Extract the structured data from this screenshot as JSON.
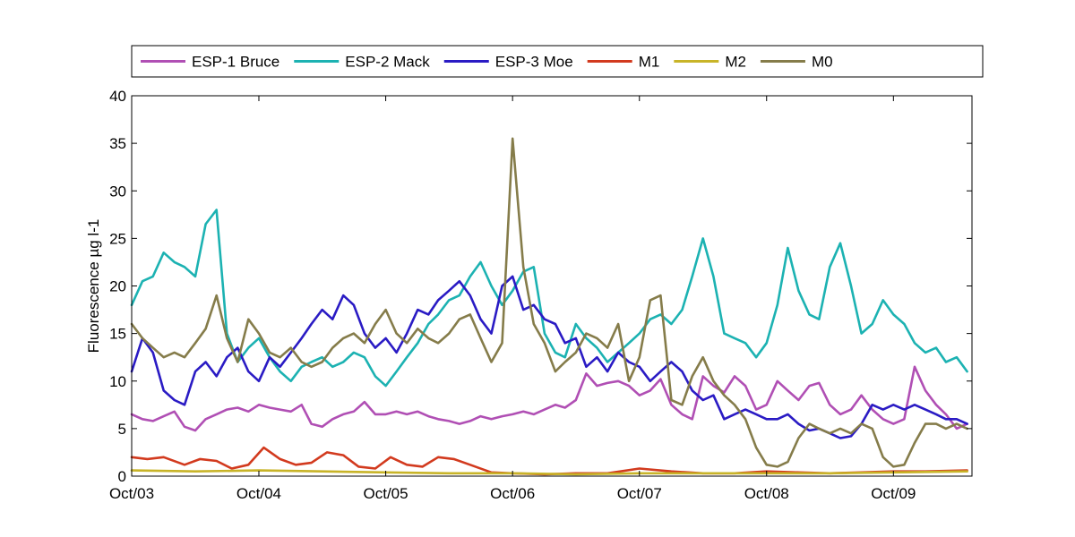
{
  "chart_data": {
    "type": "line",
    "title": "",
    "xlabel": "",
    "ylabel": "Fluorescence µg l-1",
    "xlim": [
      "2003-10-01",
      "2010-05-15"
    ],
    "ylim": [
      0,
      40
    ],
    "yticks": [
      0,
      5,
      10,
      15,
      20,
      25,
      30,
      35,
      40
    ],
    "xticks": [
      {
        "date": "2003-10-01",
        "label": "Oct/03"
      },
      {
        "date": "2004-10-01",
        "label": "Oct/04"
      },
      {
        "date": "2005-10-01",
        "label": "Oct/05"
      },
      {
        "date": "2006-10-01",
        "label": "Oct/06"
      },
      {
        "date": "2007-10-01",
        "label": "Oct/07"
      },
      {
        "date": "2008-10-01",
        "label": "Oct/08"
      },
      {
        "date": "2009-10-01",
        "label": "Oct/09"
      }
    ],
    "grid": false,
    "legend": {
      "position": "top",
      "orientation": "horizontal"
    },
    "series": [
      {
        "name": "ESP-1 Bruce",
        "color": "#b04fb4",
        "x": [
          "2003-10-01",
          "2003-11-01",
          "2003-12-01",
          "2004-01-01",
          "2004-02-01",
          "2004-03-01",
          "2004-04-01",
          "2004-05-01",
          "2004-06-01",
          "2004-07-01",
          "2004-08-01",
          "2004-09-01",
          "2004-10-01",
          "2004-11-01",
          "2004-12-01",
          "2005-01-01",
          "2005-02-01",
          "2005-03-01",
          "2005-04-01",
          "2005-05-01",
          "2005-06-01",
          "2005-07-01",
          "2005-08-01",
          "2005-09-01",
          "2005-10-01",
          "2005-11-01",
          "2005-12-01",
          "2006-01-01",
          "2006-02-01",
          "2006-03-01",
          "2006-04-01",
          "2006-05-01",
          "2006-06-01",
          "2006-07-01",
          "2006-08-01",
          "2006-09-01",
          "2006-10-01",
          "2006-11-01",
          "2006-12-01",
          "2007-01-01",
          "2007-02-01",
          "2007-03-01",
          "2007-04-01",
          "2007-05-01",
          "2007-06-01",
          "2007-07-01",
          "2007-08-01",
          "2007-09-01",
          "2007-10-01",
          "2007-11-01",
          "2007-12-01",
          "2008-01-01",
          "2008-02-01",
          "2008-03-01",
          "2008-04-01",
          "2008-05-01",
          "2008-06-01",
          "2008-07-01",
          "2008-08-01",
          "2008-09-01",
          "2008-10-01",
          "2008-11-01",
          "2008-12-01",
          "2009-01-01",
          "2009-02-01",
          "2009-03-01",
          "2009-04-01",
          "2009-05-01",
          "2009-06-01",
          "2009-07-01",
          "2009-08-01",
          "2009-09-01",
          "2009-10-01",
          "2009-11-01",
          "2009-12-01",
          "2010-01-01",
          "2010-02-01",
          "2010-03-01",
          "2010-04-01",
          "2010-05-01"
        ],
        "y": [
          6.5,
          6.0,
          5.8,
          6.3,
          6.8,
          5.2,
          4.8,
          6.0,
          6.5,
          7.0,
          7.2,
          6.8,
          7.5,
          7.2,
          7.0,
          6.8,
          7.5,
          5.5,
          5.2,
          6.0,
          6.5,
          6.8,
          7.8,
          6.5,
          6.5,
          6.8,
          6.5,
          6.8,
          6.3,
          6.0,
          5.8,
          5.5,
          5.8,
          6.3,
          6.0,
          6.3,
          6.5,
          6.8,
          6.5,
          7.0,
          7.5,
          7.2,
          8.0,
          10.8,
          9.5,
          9.8,
          10.0,
          9.5,
          8.5,
          9.0,
          10.2,
          7.5,
          6.5,
          6.0,
          10.5,
          9.5,
          8.8,
          10.5,
          9.5,
          7.0,
          7.5,
          10.0,
          9.0,
          8.0,
          9.5,
          9.8,
          7.5,
          6.5,
          7.0,
          8.5,
          7.0,
          6.0,
          5.5,
          6.0,
          11.5,
          9.0,
          7.5,
          6.5,
          5.0,
          5.5
        ]
      },
      {
        "name": "ESP-2 Mack",
        "color": "#1cb2b2",
        "x": [
          "2003-10-01",
          "2003-11-01",
          "2003-12-01",
          "2004-01-01",
          "2004-02-01",
          "2004-03-01",
          "2004-04-01",
          "2004-05-01",
          "2004-06-01",
          "2004-07-01",
          "2004-08-01",
          "2004-09-01",
          "2004-10-01",
          "2004-11-01",
          "2004-12-01",
          "2005-01-01",
          "2005-02-01",
          "2005-03-01",
          "2005-04-01",
          "2005-05-01",
          "2005-06-01",
          "2005-07-01",
          "2005-08-01",
          "2005-09-01",
          "2005-10-01",
          "2005-11-01",
          "2005-12-01",
          "2006-01-01",
          "2006-02-01",
          "2006-03-01",
          "2006-04-01",
          "2006-05-01",
          "2006-06-01",
          "2006-07-01",
          "2006-08-01",
          "2006-09-01",
          "2006-10-01",
          "2006-11-01",
          "2006-12-01",
          "2007-01-01",
          "2007-02-01",
          "2007-03-01",
          "2007-04-01",
          "2007-05-01",
          "2007-06-01",
          "2007-07-01",
          "2007-08-01",
          "2007-09-01",
          "2007-10-01",
          "2007-11-01",
          "2007-12-01",
          "2008-01-01",
          "2008-02-01",
          "2008-03-01",
          "2008-04-01",
          "2008-05-01",
          "2008-06-01",
          "2008-07-01",
          "2008-08-01",
          "2008-09-01",
          "2008-10-01",
          "2008-11-01",
          "2008-12-01",
          "2009-01-01",
          "2009-02-01",
          "2009-03-01",
          "2009-04-01",
          "2009-05-01",
          "2009-06-01",
          "2009-07-01",
          "2009-08-01",
          "2009-09-01",
          "2009-10-01",
          "2009-11-01",
          "2009-12-01",
          "2010-01-01",
          "2010-02-01",
          "2010-03-01",
          "2010-04-01",
          "2010-05-01"
        ],
        "y": [
          18.0,
          20.5,
          21.0,
          23.5,
          22.5,
          22.0,
          21.0,
          26.5,
          28.0,
          15.0,
          12.0,
          13.5,
          14.5,
          12.5,
          11.0,
          10.0,
          11.5,
          12.0,
          12.5,
          11.5,
          12.0,
          13.0,
          12.5,
          10.5,
          9.5,
          11.0,
          12.5,
          14.0,
          16.0,
          17.0,
          18.5,
          19.0,
          21.0,
          22.5,
          20.0,
          18.0,
          19.5,
          21.5,
          22.0,
          15.0,
          13.0,
          12.5,
          16.0,
          14.5,
          13.5,
          12.0,
          13.0,
          14.0,
          15.0,
          16.5,
          17.0,
          16.0,
          17.5,
          21.0,
          25.0,
          21.0,
          15.0,
          14.5,
          14.0,
          12.5,
          14.0,
          18.0,
          24.0,
          19.5,
          17.0,
          16.5,
          22.0,
          24.5,
          20.0,
          15.0,
          16.0,
          18.5,
          17.0,
          16.0,
          14.0,
          13.0,
          13.5,
          12.0,
          12.5,
          11.0
        ]
      },
      {
        "name": "ESP-3 Moe",
        "color": "#2a1bc4",
        "x": [
          "2003-10-01",
          "2003-11-01",
          "2003-12-01",
          "2004-01-01",
          "2004-02-01",
          "2004-03-01",
          "2004-04-01",
          "2004-05-01",
          "2004-06-01",
          "2004-07-01",
          "2004-08-01",
          "2004-09-01",
          "2004-10-01",
          "2004-11-01",
          "2004-12-01",
          "2005-01-01",
          "2005-02-01",
          "2005-03-01",
          "2005-04-01",
          "2005-05-01",
          "2005-06-01",
          "2005-07-01",
          "2005-08-01",
          "2005-09-01",
          "2005-10-01",
          "2005-11-01",
          "2005-12-01",
          "2006-01-01",
          "2006-02-01",
          "2006-03-01",
          "2006-04-01",
          "2006-05-01",
          "2006-06-01",
          "2006-07-01",
          "2006-08-01",
          "2006-09-01",
          "2006-10-01",
          "2006-11-01",
          "2006-12-01",
          "2007-01-01",
          "2007-02-01",
          "2007-03-01",
          "2007-04-01",
          "2007-05-01",
          "2007-06-01",
          "2007-07-01",
          "2007-08-01",
          "2007-09-01",
          "2007-10-01",
          "2007-11-01",
          "2007-12-01",
          "2008-01-01",
          "2008-02-01",
          "2008-03-01",
          "2008-04-01",
          "2008-05-01",
          "2008-06-01",
          "2008-07-01",
          "2008-08-01",
          "2008-09-01",
          "2008-10-01",
          "2008-11-01",
          "2008-12-01",
          "2009-01-01",
          "2009-02-01",
          "2009-03-01",
          "2009-04-01",
          "2009-05-01",
          "2009-06-01",
          "2009-07-01",
          "2009-08-01",
          "2009-09-01",
          "2009-10-01",
          "2009-11-01",
          "2009-12-01",
          "2010-01-01",
          "2010-02-01",
          "2010-03-01",
          "2010-04-01",
          "2010-05-01"
        ],
        "y": [
          11.0,
          14.5,
          13.0,
          9.0,
          8.0,
          7.5,
          11.0,
          12.0,
          10.5,
          12.5,
          13.5,
          11.0,
          10.0,
          12.5,
          11.5,
          13.0,
          14.5,
          16.0,
          17.5,
          16.5,
          19.0,
          18.0,
          15.0,
          13.5,
          14.5,
          13.0,
          15.0,
          17.5,
          17.0,
          18.5,
          19.5,
          20.5,
          19.0,
          16.5,
          15.0,
          20.0,
          21.0,
          17.5,
          18.0,
          16.5,
          16.0,
          14.0,
          14.5,
          11.5,
          12.5,
          11.0,
          13.0,
          12.0,
          11.5,
          10.0,
          11.0,
          12.0,
          11.0,
          9.0,
          8.0,
          8.5,
          6.0,
          6.5,
          7.0,
          6.5,
          6.0,
          6.0,
          6.5,
          5.5,
          4.8,
          5.0,
          4.5,
          4.0,
          4.2,
          5.5,
          7.5,
          7.0,
          7.5,
          7.0,
          7.5,
          7.0,
          6.5,
          6.0,
          6.0,
          5.5
        ]
      },
      {
        "name": "M1",
        "color": "#d23a1e",
        "x": [
          "2003-10-01",
          "2003-11-15",
          "2004-01-01",
          "2004-03-01",
          "2004-04-15",
          "2004-06-01",
          "2004-07-15",
          "2004-09-01",
          "2004-10-15",
          "2004-12-01",
          "2005-01-15",
          "2005-03-01",
          "2005-04-15",
          "2005-06-01",
          "2005-07-15",
          "2005-09-01",
          "2005-10-15",
          "2005-12-01",
          "2006-01-15",
          "2006-03-01",
          "2006-04-15",
          "2006-06-01",
          "2006-08-01",
          "2006-10-01",
          "2007-01-01",
          "2007-04-01",
          "2007-07-01",
          "2007-10-01",
          "2008-01-01",
          "2008-04-01",
          "2008-07-01",
          "2008-10-01",
          "2009-01-01",
          "2009-04-01",
          "2009-07-01",
          "2009-10-01",
          "2010-01-01",
          "2010-05-01"
        ],
        "y": [
          2.0,
          1.8,
          2.0,
          1.2,
          1.8,
          1.6,
          0.8,
          1.2,
          3.0,
          1.8,
          1.2,
          1.4,
          2.5,
          2.2,
          1.0,
          0.8,
          2.0,
          1.2,
          1.0,
          2.0,
          1.8,
          1.2,
          0.4,
          0.3,
          0.2,
          0.3,
          0.3,
          0.8,
          0.5,
          0.3,
          0.3,
          0.5,
          0.4,
          0.3,
          0.4,
          0.5,
          0.5,
          0.6
        ]
      },
      {
        "name": "M2",
        "color": "#c8b428",
        "x": [
          "2003-10-01",
          "2004-04-01",
          "2004-10-01",
          "2005-04-01",
          "2005-10-01",
          "2006-04-01",
          "2006-10-01",
          "2007-04-01",
          "2007-10-01",
          "2008-04-01",
          "2008-10-01",
          "2009-04-01",
          "2009-10-01",
          "2010-05-01"
        ],
        "y": [
          0.6,
          0.5,
          0.6,
          0.5,
          0.4,
          0.3,
          0.3,
          0.2,
          0.3,
          0.3,
          0.3,
          0.3,
          0.4,
          0.5
        ]
      },
      {
        "name": "M0",
        "color": "#857c4a",
        "x": [
          "2003-10-01",
          "2003-11-01",
          "2003-12-01",
          "2004-01-01",
          "2004-02-01",
          "2004-03-01",
          "2004-04-01",
          "2004-05-01",
          "2004-06-01",
          "2004-07-01",
          "2004-08-01",
          "2004-09-01",
          "2004-10-01",
          "2004-11-01",
          "2004-12-01",
          "2005-01-01",
          "2005-02-01",
          "2005-03-01",
          "2005-04-01",
          "2005-05-01",
          "2005-06-01",
          "2005-07-01",
          "2005-08-01",
          "2005-09-01",
          "2005-10-01",
          "2005-11-01",
          "2005-12-01",
          "2006-01-01",
          "2006-02-01",
          "2006-03-01",
          "2006-04-01",
          "2006-05-01",
          "2006-06-01",
          "2006-07-01",
          "2006-08-01",
          "2006-09-01",
          "2006-10-01",
          "2006-11-01",
          "2006-12-01",
          "2007-01-01",
          "2007-02-01",
          "2007-03-01",
          "2007-04-01",
          "2007-05-01",
          "2007-06-01",
          "2007-07-01",
          "2007-08-01",
          "2007-09-01",
          "2007-10-01",
          "2007-11-01",
          "2007-12-01",
          "2008-01-01",
          "2008-02-01",
          "2008-03-01",
          "2008-04-01",
          "2008-05-01",
          "2008-06-01",
          "2008-07-01",
          "2008-08-01",
          "2008-09-01",
          "2008-10-01",
          "2008-11-01",
          "2008-12-01",
          "2009-01-01",
          "2009-02-01",
          "2009-03-01",
          "2009-04-01",
          "2009-05-01",
          "2009-06-01",
          "2009-07-01",
          "2009-08-01",
          "2009-09-01",
          "2009-10-01",
          "2009-11-01",
          "2009-12-01",
          "2010-01-01",
          "2010-02-01",
          "2010-03-01",
          "2010-04-01",
          "2010-05-01"
        ],
        "y": [
          16.0,
          14.5,
          13.5,
          12.5,
          13.0,
          12.5,
          14.0,
          15.5,
          19.0,
          14.5,
          12.0,
          16.5,
          15.0,
          13.0,
          12.5,
          13.5,
          12.0,
          11.5,
          12.0,
          13.5,
          14.5,
          15.0,
          14.0,
          16.0,
          17.5,
          15.0,
          14.0,
          15.5,
          14.5,
          14.0,
          15.0,
          16.5,
          17.0,
          14.5,
          12.0,
          14.0,
          35.5,
          22.0,
          16.0,
          14.0,
          11.0,
          12.0,
          13.0,
          15.0,
          14.5,
          13.5,
          16.0,
          10.0,
          12.5,
          18.5,
          19.0,
          8.0,
          7.5,
          10.5,
          12.5,
          10.0,
          8.5,
          7.5,
          6.0,
          3.0,
          1.2,
          1.0,
          1.5,
          4.0,
          5.5,
          5.0,
          4.5,
          5.0,
          4.5,
          5.5,
          5.0,
          2.0,
          1.0,
          1.2,
          3.5,
          5.5,
          5.5,
          5.0,
          5.5,
          5.0
        ]
      }
    ]
  }
}
